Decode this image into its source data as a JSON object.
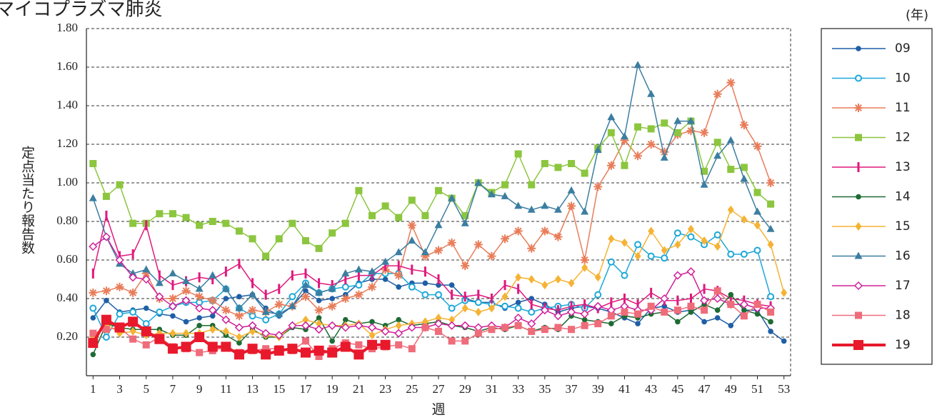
{
  "chart_data": {
    "type": "line",
    "title": "マイコプラズマ肺炎",
    "y_label": "定点当たり報告数",
    "x_label": "週",
    "legend_title": "(年)",
    "legend": "right",
    "grid": true,
    "x": [
      1,
      2,
      3,
      4,
      5,
      6,
      7,
      8,
      9,
      10,
      11,
      12,
      13,
      14,
      15,
      16,
      17,
      18,
      19,
      20,
      21,
      22,
      23,
      24,
      25,
      26,
      27,
      28,
      29,
      30,
      31,
      32,
      33,
      34,
      35,
      36,
      37,
      38,
      39,
      40,
      41,
      42,
      43,
      44,
      45,
      46,
      47,
      48,
      49,
      50,
      51,
      52,
      53
    ],
    "xlim": [
      0.5,
      53.5
    ],
    "xticks": [
      1,
      3,
      5,
      7,
      9,
      11,
      13,
      15,
      17,
      19,
      21,
      23,
      25,
      27,
      29,
      31,
      33,
      35,
      37,
      39,
      41,
      43,
      45,
      47,
      49,
      51,
      53
    ],
    "ylim": [
      0,
      1.8
    ],
    "yticks": [
      {
        "value": 0.2,
        "label": "0.20"
      },
      {
        "value": 0.4,
        "label": "0.40"
      },
      {
        "value": 0.6,
        "label": "0.60"
      },
      {
        "value": 0.8,
        "label": "0.80"
      },
      {
        "value": 1.0,
        "label": "1.00"
      },
      {
        "value": 1.2,
        "label": "1.20"
      },
      {
        "value": 1.4,
        "label": "1.40"
      },
      {
        "value": 1.6,
        "label": "1.60"
      },
      {
        "value": 1.8,
        "label": "1.80"
      }
    ],
    "series": [
      {
        "name": "09",
        "color": "#1f5fa6",
        "marker": "dot",
        "values": [
          0.3,
          0.39,
          0.33,
          0.34,
          0.35,
          0.32,
          0.31,
          0.28,
          0.3,
          0.31,
          0.4,
          0.41,
          0.42,
          0.35,
          0.31,
          0.36,
          0.44,
          0.39,
          0.4,
          0.42,
          0.48,
          0.5,
          0.5,
          0.46,
          0.48,
          0.48,
          0.47,
          0.47,
          0.4,
          0.38,
          0.38,
          0.35,
          0.38,
          0.4,
          0.37,
          0.33,
          0.35,
          0.36,
          0.35,
          0.33,
          0.3,
          0.27,
          0.35,
          0.36,
          0.33,
          0.34,
          0.28,
          0.3,
          0.26,
          0.34,
          0.34,
          0.23,
          0.18
        ]
      },
      {
        "name": "10",
        "color": "#1ca8d8",
        "marker": "circle",
        "values": [
          0.35,
          0.2,
          0.32,
          0.33,
          0.27,
          0.33,
          0.36,
          0.38,
          0.38,
          0.39,
          0.45,
          0.35,
          0.31,
          0.29,
          0.32,
          0.41,
          0.48,
          0.43,
          0.45,
          0.46,
          0.47,
          0.53,
          0.53,
          0.53,
          0.46,
          0.42,
          0.42,
          0.35,
          0.39,
          0.38,
          0.37,
          0.36,
          0.35,
          0.33,
          0.35,
          0.36,
          0.37,
          0.35,
          0.42,
          0.59,
          0.52,
          0.68,
          0.62,
          0.61,
          0.74,
          0.72,
          0.68,
          0.73,
          0.63,
          0.63,
          0.65,
          0.41,
          null
        ]
      },
      {
        "name": "11",
        "color": "#e87d5a",
        "marker": "asterisk",
        "values": [
          0.43,
          0.44,
          0.46,
          0.43,
          0.53,
          0.4,
          0.4,
          0.44,
          0.41,
          0.39,
          0.34,
          0.31,
          0.34,
          0.33,
          0.37,
          0.36,
          0.41,
          0.34,
          0.36,
          0.4,
          0.42,
          0.46,
          0.55,
          0.52,
          0.78,
          0.62,
          0.65,
          0.69,
          0.57,
          0.68,
          0.62,
          0.71,
          0.75,
          0.66,
          0.75,
          0.72,
          0.88,
          0.6,
          0.98,
          1.09,
          1.22,
          1.14,
          1.2,
          1.16,
          1.25,
          1.27,
          1.26,
          1.46,
          1.52,
          1.3,
          1.19,
          1.0,
          null
        ]
      },
      {
        "name": "12",
        "color": "#8cc63f",
        "marker": "square",
        "values": [
          1.1,
          0.93,
          0.99,
          0.79,
          0.79,
          0.84,
          0.84,
          0.82,
          0.78,
          0.8,
          0.79,
          0.75,
          0.71,
          0.62,
          0.71,
          0.79,
          0.7,
          0.66,
          0.74,
          0.79,
          0.96,
          0.83,
          0.88,
          0.82,
          0.91,
          0.83,
          0.96,
          0.92,
          0.83,
          1.0,
          0.95,
          0.99,
          1.15,
          0.99,
          1.1,
          1.08,
          1.1,
          1.05,
          1.18,
          1.26,
          1.09,
          1.29,
          1.28,
          1.31,
          1.26,
          1.32,
          1.06,
          1.21,
          1.07,
          1.08,
          0.95,
          0.89,
          null
        ]
      },
      {
        "name": "13",
        "color": "#e0197d",
        "marker": "bar",
        "values": [
          0.53,
          0.83,
          0.62,
          0.63,
          0.78,
          0.52,
          0.47,
          0.49,
          0.51,
          0.5,
          0.54,
          0.58,
          0.48,
          0.42,
          0.45,
          0.52,
          0.53,
          0.48,
          0.47,
          0.5,
          0.52,
          0.52,
          0.57,
          0.57,
          0.55,
          0.54,
          0.5,
          0.42,
          0.41,
          0.42,
          0.4,
          0.47,
          0.45,
          0.37,
          0.35,
          0.34,
          0.36,
          0.37,
          0.35,
          0.38,
          0.4,
          0.37,
          0.43,
          0.39,
          0.39,
          0.4,
          0.45,
          0.44,
          0.4,
          0.39,
          0.37,
          0.36,
          null
        ]
      },
      {
        "name": "14",
        "color": "#1e6b34",
        "marker": "dot",
        "values": [
          0.11,
          0.27,
          0.25,
          0.24,
          0.24,
          0.24,
          0.21,
          0.21,
          0.26,
          0.26,
          0.21,
          0.17,
          0.24,
          0.2,
          0.2,
          0.25,
          0.24,
          0.3,
          0.18,
          0.29,
          0.27,
          0.28,
          0.26,
          0.29,
          0.26,
          0.27,
          0.28,
          0.26,
          0.25,
          0.23,
          0.25,
          0.24,
          0.26,
          0.23,
          0.25,
          0.24,
          0.31,
          0.29,
          0.28,
          0.27,
          0.31,
          0.3,
          0.32,
          0.33,
          0.28,
          0.33,
          0.37,
          0.34,
          0.42,
          0.34,
          0.32,
          0.28,
          null
        ]
      },
      {
        "name": "15",
        "color": "#f5b335",
        "marker": "diamond",
        "values": [
          0.2,
          0.27,
          0.22,
          0.23,
          0.21,
          0.22,
          0.22,
          0.22,
          0.22,
          0.24,
          0.23,
          0.2,
          0.23,
          0.21,
          0.2,
          0.26,
          0.29,
          0.27,
          0.26,
          0.26,
          0.27,
          0.21,
          0.24,
          0.26,
          0.27,
          0.28,
          0.3,
          0.29,
          0.35,
          0.33,
          0.35,
          0.41,
          0.51,
          0.5,
          0.47,
          0.5,
          0.48,
          0.56,
          0.51,
          0.71,
          0.69,
          0.62,
          0.75,
          0.65,
          0.68,
          0.76,
          0.7,
          0.67,
          0.86,
          0.81,
          0.78,
          0.68,
          0.43
        ]
      },
      {
        "name": "16",
        "color": "#3b7ea1",
        "marker": "triangle",
        "values": [
          0.92,
          0.72,
          0.58,
          0.53,
          0.55,
          0.48,
          0.53,
          0.49,
          0.45,
          0.52,
          0.45,
          0.35,
          0.42,
          0.33,
          0.32,
          0.36,
          0.47,
          0.43,
          0.45,
          0.53,
          0.55,
          0.54,
          0.59,
          0.64,
          0.7,
          0.64,
          0.78,
          0.92,
          0.79,
          1.0,
          0.94,
          0.93,
          0.88,
          0.86,
          0.88,
          0.86,
          0.96,
          0.85,
          1.17,
          1.34,
          1.24,
          1.61,
          1.46,
          1.13,
          1.32,
          1.32,
          0.99,
          1.14,
          1.22,
          1.02,
          0.85,
          0.76,
          null
        ]
      },
      {
        "name": "17",
        "color": "#d0209b",
        "marker": "open-diamond",
        "values": [
          0.67,
          0.72,
          0.6,
          0.51,
          0.5,
          0.41,
          0.36,
          0.39,
          0.35,
          0.34,
          0.29,
          0.25,
          0.26,
          0.22,
          0.21,
          0.26,
          0.26,
          0.24,
          0.26,
          0.25,
          0.26,
          0.25,
          0.23,
          0.22,
          0.25,
          0.25,
          0.27,
          0.26,
          0.26,
          0.25,
          0.26,
          0.25,
          0.3,
          0.27,
          0.34,
          0.31,
          0.33,
          0.32,
          0.36,
          0.34,
          0.36,
          0.34,
          0.34,
          0.4,
          0.52,
          0.54,
          0.39,
          0.4,
          0.37,
          0.37,
          0.35,
          0.35,
          null
        ]
      },
      {
        "name": "18",
        "color": "#ef6c7a",
        "marker": "square",
        "values": [
          0.22,
          0.24,
          0.25,
          0.19,
          0.16,
          0.2,
          0.15,
          0.14,
          0.12,
          0.13,
          0.15,
          0.12,
          0.13,
          0.14,
          0.14,
          0.13,
          0.18,
          0.1,
          0.14,
          0.17,
          0.16,
          0.14,
          0.15,
          0.16,
          0.14,
          0.25,
          0.23,
          0.18,
          0.18,
          0.22,
          0.24,
          0.25,
          0.26,
          0.23,
          0.24,
          0.25,
          0.24,
          0.26,
          0.27,
          0.31,
          0.33,
          0.32,
          0.36,
          0.33,
          0.34,
          0.36,
          0.34,
          0.44,
          0.37,
          0.31,
          0.37,
          0.33,
          null
        ]
      },
      {
        "name": "19",
        "color": "#e8192c",
        "marker": "big-square",
        "values": [
          0.17,
          0.29,
          0.25,
          0.28,
          0.23,
          0.19,
          0.14,
          0.15,
          0.2,
          0.15,
          0.15,
          0.11,
          0.14,
          0.11,
          0.13,
          0.14,
          0.12,
          0.13,
          0.12,
          0.15,
          0.11,
          0.16,
          0.16,
          null,
          null,
          null,
          null,
          null,
          null,
          null,
          null,
          null,
          null,
          null,
          null,
          null,
          null,
          null,
          null,
          null,
          null,
          null,
          null,
          null,
          null,
          null,
          null,
          null,
          null,
          null,
          null,
          null,
          null
        ]
      }
    ]
  }
}
